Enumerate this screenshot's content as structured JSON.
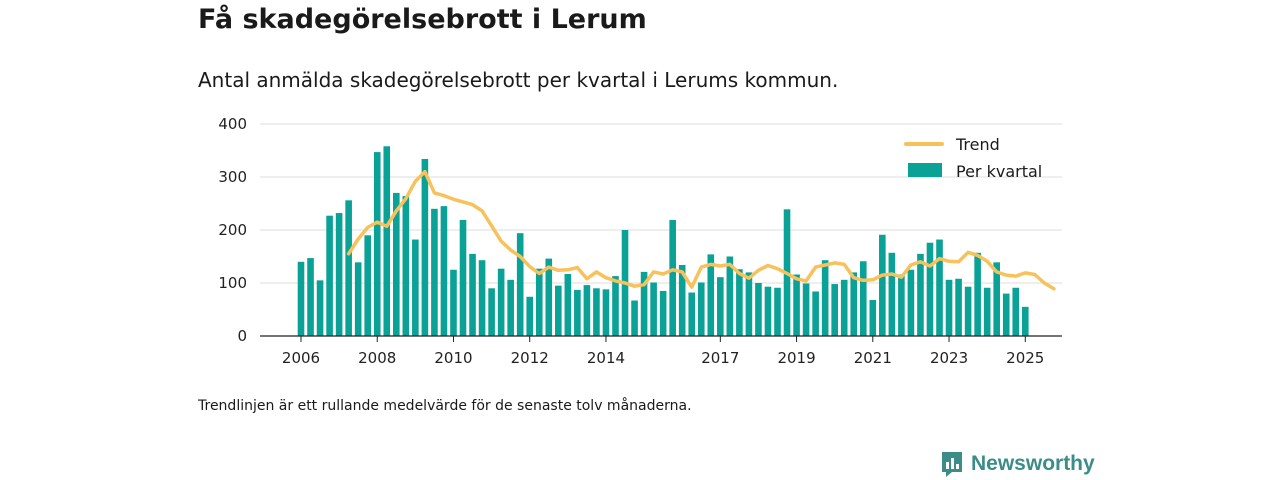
{
  "header": {
    "title": "Få skadegörelsebrott i Lerum",
    "subtitle": "Antal anmälda skadegörelsebrott per kvartal i Lerums kommun."
  },
  "footer": {
    "note": "Trendlinjen är ett rullande medelvärde för de senaste tolv månaderna.",
    "brand": "Newsworthy"
  },
  "colors": {
    "bar": "#0aa196",
    "trend": "#f7c15c",
    "brand": "#3c8c87"
  },
  "icons": {
    "brand": "bar-chart-logo-icon"
  },
  "chart_data": {
    "type": "bar",
    "x_start": "2006 Q1",
    "x_end": "2025 Q1",
    "xticks": [
      {
        "label": "2006",
        "index": 0
      },
      {
        "label": "2008",
        "index": 8
      },
      {
        "label": "2010",
        "index": 16
      },
      {
        "label": "2012",
        "index": 24
      },
      {
        "label": "2014",
        "index": 32
      },
      {
        "label": "2017",
        "index": 44
      },
      {
        "label": "2019",
        "index": 52
      },
      {
        "label": "2021",
        "index": 60
      },
      {
        "label": "2023",
        "index": 68
      },
      {
        "label": "2025",
        "index": 76
      }
    ],
    "yticks": [
      0,
      100,
      200,
      300,
      400
    ],
    "ylim": [
      0,
      400
    ],
    "grid": true,
    "legend_position": "top-right",
    "series": [
      {
        "name": "Per kvartal",
        "type": "bar",
        "values": [
          140,
          147,
          105,
          227,
          232,
          256,
          139,
          190,
          347,
          358,
          270,
          264,
          182,
          334,
          240,
          245,
          125,
          219,
          155,
          143,
          90,
          127,
          106,
          194,
          74,
          127,
          146,
          95,
          117,
          87,
          96,
          90,
          88,
          113,
          200,
          67,
          121,
          101,
          85,
          219,
          134,
          82,
          101,
          154,
          111,
          150,
          126,
          120,
          100,
          93,
          91,
          239,
          116,
          99,
          84,
          143,
          98,
          106,
          120,
          141,
          68,
          191,
          157,
          116,
          125,
          155,
          176,
          182,
          106,
          108,
          93,
          157,
          91,
          139,
          80,
          91,
          55
        ]
      },
      {
        "name": "Trend",
        "type": "line",
        "start_index": 5,
        "values": [
          155,
          183,
          205,
          215,
          207,
          236,
          259,
          292,
          310,
          270,
          265,
          258,
          253,
          248,
          236,
          208,
          179,
          162,
          150,
          131,
          118,
          130,
          124,
          125,
          129,
          108,
          121,
          110,
          104,
          100,
          94,
          97,
          121,
          117,
          125,
          121,
          92,
          130,
          135,
          132,
          135,
          118,
          109,
          124,
          133,
          127,
          118,
          108,
          104,
          130,
          134,
          138,
          135,
          110,
          105,
          106,
          115,
          117,
          111,
          134,
          140,
          132,
          146,
          141,
          140,
          158,
          152,
          141,
          121,
          115,
          113,
          119,
          116,
          100,
          89
        ]
      }
    ]
  }
}
